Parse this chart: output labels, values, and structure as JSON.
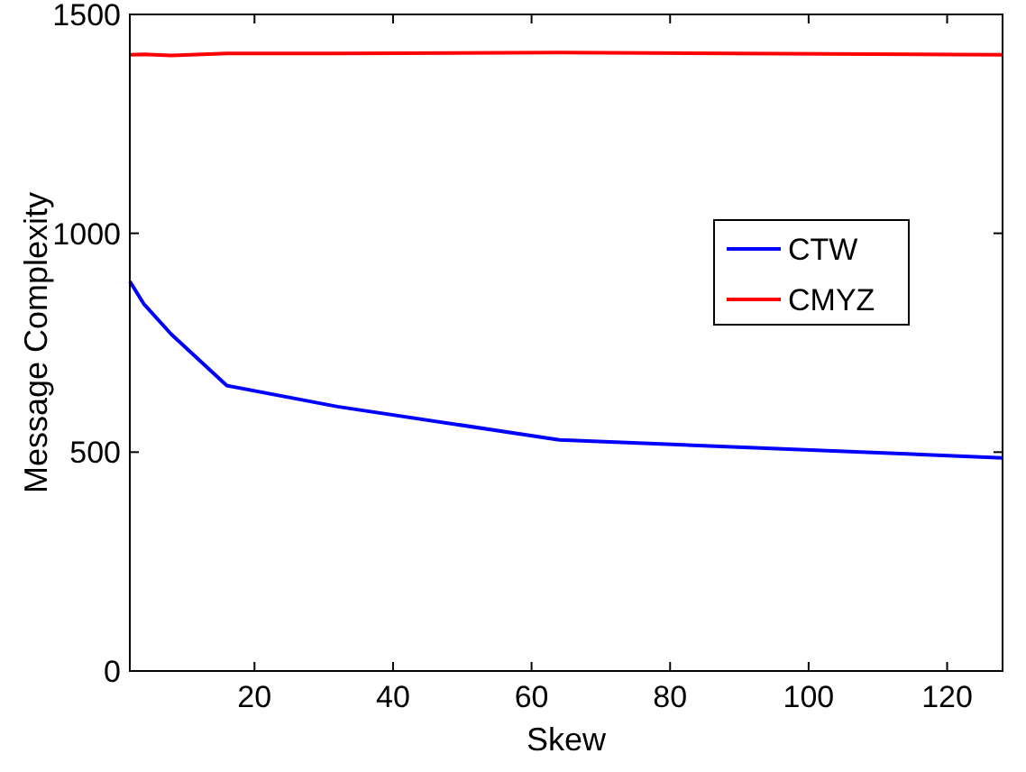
{
  "chart_data": {
    "type": "line",
    "xlabel": "Skew",
    "ylabel": "Message Complexity",
    "x": [
      2,
      4,
      8,
      16,
      32,
      64,
      128
    ],
    "series": [
      {
        "name": "CTW",
        "color": "#0000ff",
        "values": [
          890,
          839,
          769,
          652,
          604,
          528,
          487
        ]
      },
      {
        "name": "CMYZ",
        "color": "#ff0000",
        "values": [
          1408,
          1409,
          1406,
          1411,
          1411,
          1413,
          1408
        ]
      }
    ],
    "xlim": [
      2,
      128
    ],
    "xticks": [
      20,
      40,
      60,
      80,
      100,
      120
    ],
    "ylim": [
      0,
      1500
    ],
    "yticks": [
      0,
      500,
      1000,
      1500
    ],
    "grid": false,
    "legend": "right",
    "marker": "none",
    "line_style": "solid"
  }
}
